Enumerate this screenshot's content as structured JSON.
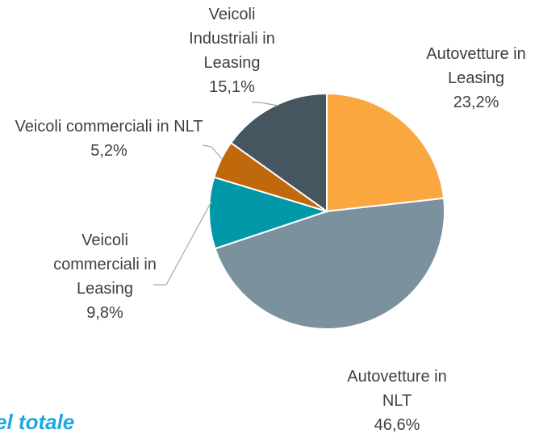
{
  "chart_data": {
    "type": "pie",
    "categories": [
      "Autovetture in Leasing",
      "Autovetture in NLT",
      "Veicoli commerciali in Leasing",
      "Veicoli commerciali in NLT",
      "Veicoli Industriali in Leasing"
    ],
    "values": [
      23.2,
      46.6,
      9.8,
      5.2,
      15.1
    ],
    "value_labels": [
      "23,2%",
      "46,6%",
      "9,8%",
      "5,2%",
      "15,1%"
    ],
    "colors": [
      "#f9a73e",
      "#7b919d",
      "#0098a8",
      "#c0680c",
      "#455661"
    ],
    "annotation": "el totale"
  }
}
